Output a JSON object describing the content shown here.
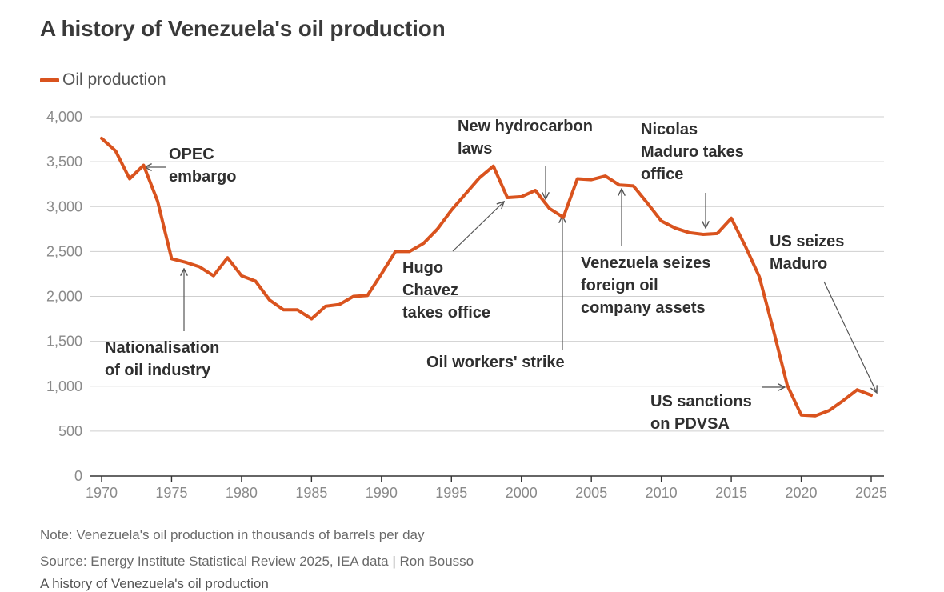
{
  "title": "A history of Venezuela's oil production",
  "legend": {
    "label": "Oil production",
    "color": "#d9531e"
  },
  "note": "Note: Venezuela's oil production in thousands of barrels per day",
  "source": "Source: Energy Institute Statistical Review 2025, IEA data | Ron Bousso",
  "caption": "A history of Venezuela's oil production",
  "chart_data": {
    "type": "line",
    "title": "A history of Venezuela's oil production",
    "xlabel": "",
    "ylabel": "",
    "xlim": [
      1970,
      2025
    ],
    "ylim": [
      0,
      4000
    ],
    "grid": true,
    "legend_position": "top-left",
    "x_ticks": [
      1970,
      1975,
      1980,
      1985,
      1990,
      1995,
      2000,
      2005,
      2010,
      2015,
      2020,
      2025
    ],
    "x_tick_labels": [
      "1970",
      "1975",
      "1980",
      "1985",
      "1990",
      "1995",
      "2000",
      "2005",
      "2010",
      "2015",
      "2020",
      "2025"
    ],
    "y_ticks": [
      0,
      500,
      1000,
      1500,
      2000,
      2500,
      3000,
      3500,
      4000
    ],
    "y_tick_labels": [
      "0",
      "500",
      "1,000",
      "1,500",
      "2,000",
      "2,500",
      "3,000",
      "3,500",
      "4,000"
    ],
    "series": [
      {
        "name": "Oil production",
        "color": "#d9531e",
        "x": [
          1970,
          1971,
          1972,
          1973,
          1974,
          1975,
          1976,
          1977,
          1978,
          1979,
          1980,
          1981,
          1982,
          1983,
          1984,
          1985,
          1986,
          1987,
          1988,
          1989,
          1990,
          1991,
          1992,
          1993,
          1994,
          1995,
          1996,
          1997,
          1998,
          1999,
          2000,
          2001,
          2002,
          2003,
          2004,
          2005,
          2006,
          2007,
          2008,
          2009,
          2010,
          2011,
          2012,
          2013,
          2014,
          2015,
          2016,
          2017,
          2018,
          2019,
          2020,
          2021,
          2022,
          2023,
          2024,
          2025
        ],
        "values": [
          3760,
          3620,
          3310,
          3460,
          3060,
          2420,
          2380,
          2330,
          2230,
          2430,
          2230,
          2170,
          1960,
          1850,
          1850,
          1750,
          1890,
          1910,
          2000,
          2010,
          2250,
          2500,
          2500,
          2590,
          2750,
          2960,
          3140,
          3320,
          3450,
          3100,
          3110,
          3180,
          2980,
          2880,
          3310,
          3300,
          3340,
          3240,
          3230,
          3040,
          2840,
          2760,
          2710,
          2690,
          2700,
          2870,
          2560,
          2220,
          1630,
          1010,
          680,
          670,
          730,
          840,
          960,
          900
        ]
      }
    ],
    "annotations": [
      {
        "id": "opec",
        "lines": [
          "OPEC",
          "embargo"
        ],
        "x": 1973
      },
      {
        "id": "nationalisation",
        "lines": [
          "Nationalisation",
          "of oil industry"
        ],
        "x": 1976
      },
      {
        "id": "chavez",
        "lines": [
          "Hugo",
          "Chavez",
          "takes office"
        ],
        "x": 1999
      },
      {
        "id": "hydrocarbon",
        "lines": [
          "New hydrocarbon",
          "laws"
        ],
        "x": 2001
      },
      {
        "id": "strike",
        "lines": [
          "Oil workers' strike"
        ],
        "x": 2003
      },
      {
        "id": "seizes",
        "lines": [
          "Venezuela seizes",
          "foreign oil",
          "company assets"
        ],
        "x": 2007
      },
      {
        "id": "maduro_office",
        "lines": [
          "Nicolas",
          "Maduro takes",
          "office"
        ],
        "x": 2013
      },
      {
        "id": "sanctions",
        "lines": [
          "US sanctions",
          "on PDVSA"
        ],
        "x": 2019
      },
      {
        "id": "us_seizes",
        "lines": [
          "US seizes",
          "Maduro"
        ],
        "x": 2025
      }
    ]
  }
}
